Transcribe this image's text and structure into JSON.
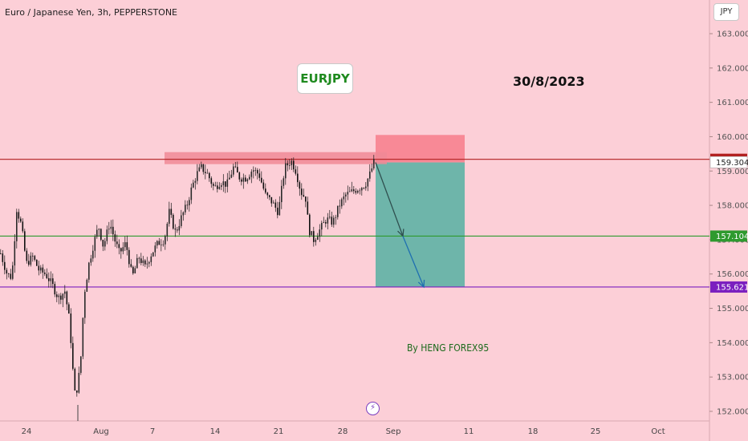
{
  "header": {
    "symbol_title": "Euro / Japanese Yen, 3h, PEPPERSTONE",
    "currency": "JPY"
  },
  "annotations": {
    "pair": "EURJPY",
    "date": "30/8/2023",
    "author": "By HENG FOREX95",
    "event_icon": "lightning-icon"
  },
  "colors": {
    "background": "#fccfd7",
    "resistance_line": "#b22020",
    "support_line": "#2e9a2e",
    "target_line": "#7b1fbf",
    "stop_zone": "#f7818f",
    "profit_zone": "#62b3a6",
    "candle": "#1a1a1a"
  },
  "chart_data": {
    "type": "candlestick",
    "title": "Euro / Japanese Yen, 3h, PEPPERSTONE",
    "y_axis": {
      "range": [
        151.8,
        163.4
      ],
      "ticks": [
        "152.000",
        "153.000",
        "154.000",
        "155.000",
        "156.000",
        "157.000",
        "158.000",
        "159.000",
        "160.000",
        "161.000",
        "162.000",
        "163.000"
      ]
    },
    "x_axis": {
      "ticks": [
        "24",
        "Aug",
        "7",
        "14",
        "21",
        "28",
        "Sep",
        "11",
        "18",
        "25",
        "Oct"
      ]
    },
    "horizontal_levels": [
      {
        "label": "159.341",
        "value": 159.341,
        "color": "#b22020"
      },
      {
        "label": "157.104",
        "value": 157.104,
        "color": "#2e9a2e"
      },
      {
        "label": "155.621",
        "value": 155.621,
        "color": "#7b1fbf"
      }
    ],
    "current_price": {
      "label": "159.304",
      "value": 159.304
    },
    "resistance_zone": {
      "low": 159.2,
      "high": 159.55
    },
    "position": {
      "direction": "short",
      "entry": 159.25,
      "stop": 160.05,
      "target": 155.621
    },
    "price_path": [
      [
        0,
        156.6
      ],
      [
        8,
        156.0
      ],
      [
        14,
        155.9
      ],
      [
        20,
        157.9
      ],
      [
        26,
        157.4
      ],
      [
        32,
        156.3
      ],
      [
        40,
        156.5
      ],
      [
        48,
        156.1
      ],
      [
        56,
        156.0
      ],
      [
        64,
        155.7
      ],
      [
        72,
        155.3
      ],
      [
        80,
        155.5
      ],
      [
        86,
        154.6
      ],
      [
        92,
        152.5
      ],
      [
        96,
        152.7
      ],
      [
        100,
        153.6
      ],
      [
        104,
        155.4
      ],
      [
        110,
        156.3
      ],
      [
        116,
        156.9
      ],
      [
        122,
        157.4
      ],
      [
        128,
        156.8
      ],
      [
        136,
        157.5
      ],
      [
        142,
        157.0
      ],
      [
        148,
        156.6
      ],
      [
        156,
        156.9
      ],
      [
        164,
        155.9
      ],
      [
        172,
        156.5
      ],
      [
        180,
        156.2
      ],
      [
        188,
        156.6
      ],
      [
        196,
        156.9
      ],
      [
        204,
        157.0
      ],
      [
        210,
        157.8
      ],
      [
        218,
        157.2
      ],
      [
        226,
        157.7
      ],
      [
        232,
        158.0
      ],
      [
        238,
        158.5
      ],
      [
        244,
        158.9
      ],
      [
        250,
        159.1
      ],
      [
        258,
        158.9
      ],
      [
        266,
        158.5
      ],
      [
        274,
        158.7
      ],
      [
        282,
        158.6
      ],
      [
        290,
        159.1
      ],
      [
        298,
        158.8
      ],
      [
        306,
        158.8
      ],
      [
        314,
        159.05
      ],
      [
        322,
        158.9
      ],
      [
        330,
        158.3
      ],
      [
        338,
        158.1
      ],
      [
        346,
        157.8
      ],
      [
        354,
        159.1
      ],
      [
        362,
        159.3
      ],
      [
        368,
        159.0
      ],
      [
        374,
        158.4
      ],
      [
        380,
        158.2
      ],
      [
        384,
        157.3
      ],
      [
        390,
        157.0
      ],
      [
        398,
        157.3
      ],
      [
        406,
        157.6
      ],
      [
        414,
        157.5
      ],
      [
        422,
        158.0
      ],
      [
        430,
        158.3
      ],
      [
        438,
        158.4
      ],
      [
        446,
        158.5
      ],
      [
        454,
        158.6
      ],
      [
        460,
        158.9
      ],
      [
        465,
        159.25
      ]
    ],
    "arrow_path": [
      [
        468,
        159.25
      ],
      [
        502,
        157.104
      ],
      [
        528,
        155.621
      ]
    ]
  }
}
